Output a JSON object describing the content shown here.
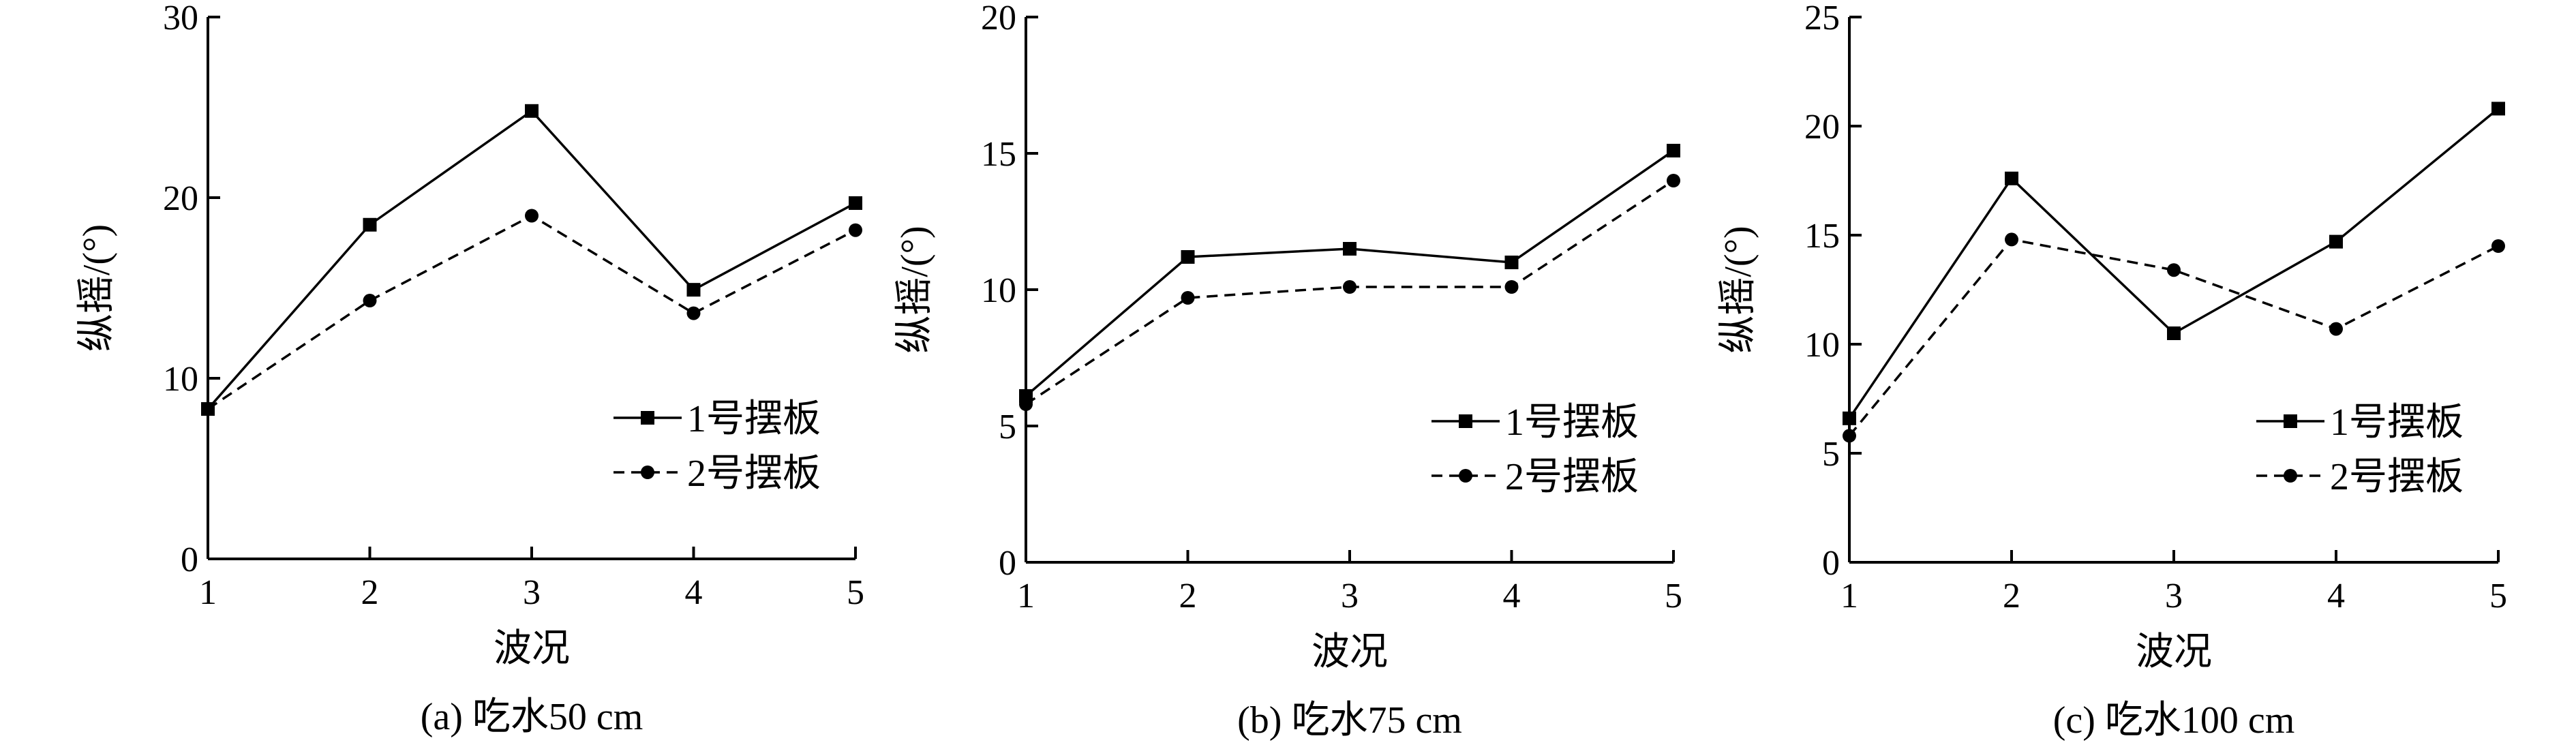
{
  "chart_data": [
    {
      "type": "line",
      "caption": "(a) 吃水50 cm",
      "xlabel": "波况",
      "ylabel": "纵摇/(°)",
      "x": [
        1,
        2,
        3,
        4,
        5
      ],
      "xlim": [
        1,
        5
      ],
      "ylim": [
        0,
        30
      ],
      "yticks": [
        0,
        10,
        20,
        30
      ],
      "grid": false,
      "legend_position": "bottom-right",
      "series": [
        {
          "name": "1号摆板",
          "style": "solid",
          "marker": "square",
          "values": [
            8.3,
            18.5,
            24.8,
            14.9,
            19.7
          ]
        },
        {
          "name": "2号摆板",
          "style": "dashed",
          "marker": "circle",
          "values": [
            8.3,
            14.3,
            19.0,
            13.6,
            18.2
          ]
        }
      ]
    },
    {
      "type": "line",
      "caption": "(b) 吃水75 cm",
      "xlabel": "波况",
      "ylabel": "纵摇/(°)",
      "x": [
        1,
        2,
        3,
        4,
        5
      ],
      "xlim": [
        1,
        5
      ],
      "ylim": [
        0,
        20
      ],
      "yticks": [
        0,
        5,
        10,
        15,
        20
      ],
      "grid": false,
      "legend_position": "bottom-right",
      "series": [
        {
          "name": "1号摆板",
          "style": "solid",
          "marker": "square",
          "values": [
            6.1,
            11.2,
            11.5,
            11.0,
            15.1
          ]
        },
        {
          "name": "2号摆板",
          "style": "dashed",
          "marker": "circle",
          "values": [
            5.8,
            9.7,
            10.1,
            10.1,
            14.0
          ]
        }
      ]
    },
    {
      "type": "line",
      "caption": "(c) 吃水100 cm",
      "xlabel": "波况",
      "ylabel": "纵摇/(°)",
      "x": [
        1,
        2,
        3,
        4,
        5
      ],
      "xlim": [
        1,
        5
      ],
      "ylim": [
        0,
        25
      ],
      "yticks": [
        0,
        5,
        10,
        15,
        20,
        25
      ],
      "grid": false,
      "legend_position": "bottom-right",
      "series": [
        {
          "name": "1号摆板",
          "style": "solid",
          "marker": "square",
          "values": [
            6.6,
            17.6,
            10.5,
            14.7,
            20.8
          ]
        },
        {
          "name": "2号摆板",
          "style": "dashed",
          "marker": "circle",
          "values": [
            5.8,
            14.8,
            13.4,
            10.7,
            14.5
          ]
        }
      ]
    }
  ]
}
